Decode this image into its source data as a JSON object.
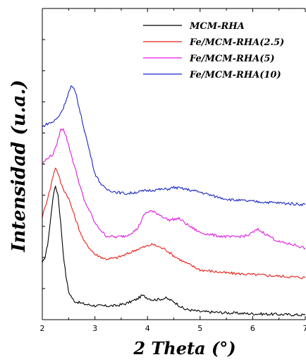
{
  "chart_data": {
    "type": "line",
    "xlabel": "2 Theta (°)",
    "ylabel": "Intensidad (u.a.)",
    "xlim": [
      2,
      7
    ],
    "xticks": [
      2,
      3,
      4,
      5,
      6,
      7
    ],
    "xtick_labels": [
      "2",
      "3",
      "4",
      "5",
      "6",
      "7"
    ],
    "ylim": [
      0,
      100
    ],
    "yticks_shown": false,
    "grid": false,
    "legend_position": "top-right",
    "series": [
      {
        "name": "MCM-RHA",
        "color": "#000000",
        "points": [
          [
            2.0,
            18
          ],
          [
            2.05,
            20
          ],
          [
            2.1,
            24
          ],
          [
            2.15,
            31
          ],
          [
            2.2,
            39
          ],
          [
            2.25,
            43
          ],
          [
            2.3,
            40
          ],
          [
            2.35,
            31
          ],
          [
            2.4,
            21
          ],
          [
            2.45,
            14
          ],
          [
            2.5,
            9
          ],
          [
            2.6,
            6
          ],
          [
            2.8,
            5
          ],
          [
            3.0,
            4.5
          ],
          [
            3.2,
            4.4
          ],
          [
            3.4,
            4.5
          ],
          [
            3.6,
            5.2
          ],
          [
            3.8,
            6.6
          ],
          [
            3.9,
            7.8
          ],
          [
            4.0,
            7.0
          ],
          [
            4.1,
            6.4
          ],
          [
            4.2,
            6.5
          ],
          [
            4.35,
            6.9
          ],
          [
            4.5,
            5.8
          ],
          [
            4.7,
            3.4
          ],
          [
            5.0,
            2.6
          ],
          [
            5.5,
            2.2
          ],
          [
            6.0,
            1.9
          ],
          [
            6.5,
            1.7
          ],
          [
            7.0,
            1.5
          ]
        ]
      },
      {
        "name": "Fe/MCM-RHA(2.5)",
        "color": "#e8211b",
        "points": [
          [
            2.0,
            33
          ],
          [
            2.05,
            36
          ],
          [
            2.1,
            39
          ],
          [
            2.15,
            42
          ],
          [
            2.2,
            46
          ],
          [
            2.25,
            49
          ],
          [
            2.3,
            47
          ],
          [
            2.35,
            44
          ],
          [
            2.4,
            42
          ],
          [
            2.5,
            39
          ],
          [
            2.6,
            34
          ],
          [
            2.7,
            29
          ],
          [
            2.8,
            25
          ],
          [
            3.0,
            21
          ],
          [
            3.2,
            19.5
          ],
          [
            3.4,
            19.8
          ],
          [
            3.6,
            21
          ],
          [
            3.8,
            22.6
          ],
          [
            4.0,
            23.7
          ],
          [
            4.1,
            24.2
          ],
          [
            4.2,
            23.5
          ],
          [
            4.35,
            22.5
          ],
          [
            4.5,
            20.5
          ],
          [
            4.7,
            18.5
          ],
          [
            5.0,
            16.0
          ],
          [
            5.5,
            15.0
          ],
          [
            6.0,
            14.5
          ],
          [
            6.5,
            14.0
          ],
          [
            7.0,
            13.5
          ]
        ]
      },
      {
        "name": "Fe/MCM-RHA(5)",
        "color": "#e11ae1",
        "points": [
          [
            2.0,
            50
          ],
          [
            2.05,
            51
          ],
          [
            2.1,
            52
          ],
          [
            2.15,
            52.5
          ],
          [
            2.2,
            53
          ],
          [
            2.25,
            55
          ],
          [
            2.3,
            58
          ],
          [
            2.35,
            61
          ],
          [
            2.4,
            61.5
          ],
          [
            2.45,
            59
          ],
          [
            2.5,
            56
          ],
          [
            2.6,
            50
          ],
          [
            2.7,
            44
          ],
          [
            2.8,
            38
          ],
          [
            2.9,
            35
          ],
          [
            3.0,
            31
          ],
          [
            3.1,
            29
          ],
          [
            3.2,
            27
          ],
          [
            3.4,
            26.5
          ],
          [
            3.6,
            27
          ],
          [
            3.8,
            29
          ],
          [
            3.95,
            34
          ],
          [
            4.05,
            35
          ],
          [
            4.2,
            34
          ],
          [
            4.4,
            32
          ],
          [
            4.6,
            32.5
          ],
          [
            4.8,
            30
          ],
          [
            5.0,
            28
          ],
          [
            5.3,
            27
          ],
          [
            5.6,
            26.5
          ],
          [
            5.9,
            27
          ],
          [
            6.0,
            28
          ],
          [
            6.1,
            29
          ],
          [
            6.2,
            28
          ],
          [
            6.5,
            25
          ],
          [
            6.8,
            24
          ],
          [
            7.0,
            23
          ]
        ]
      },
      {
        "name": "Fe/MCM-RHA(10)",
        "color": "#1a26c8",
        "points": [
          [
            2.0,
            62
          ],
          [
            2.1,
            63
          ],
          [
            2.2,
            63.5
          ],
          [
            2.3,
            65
          ],
          [
            2.4,
            68
          ],
          [
            2.5,
            73
          ],
          [
            2.55,
            75
          ],
          [
            2.6,
            74
          ],
          [
            2.65,
            72
          ],
          [
            2.7,
            68
          ],
          [
            2.8,
            61
          ],
          [
            2.9,
            54
          ],
          [
            3.0,
            47
          ],
          [
            3.1,
            44
          ],
          [
            3.2,
            42
          ],
          [
            3.4,
            41
          ],
          [
            3.6,
            40.5
          ],
          [
            3.8,
            41
          ],
          [
            4.0,
            41.5
          ],
          [
            4.2,
            41.8
          ],
          [
            4.4,
            42
          ],
          [
            4.5,
            42.5
          ],
          [
            4.7,
            42
          ],
          [
            5.0,
            41
          ],
          [
            5.3,
            39.5
          ],
          [
            5.6,
            38.5
          ],
          [
            6.0,
            38
          ],
          [
            6.5,
            37.5
          ],
          [
            7.0,
            37
          ]
        ]
      }
    ]
  }
}
